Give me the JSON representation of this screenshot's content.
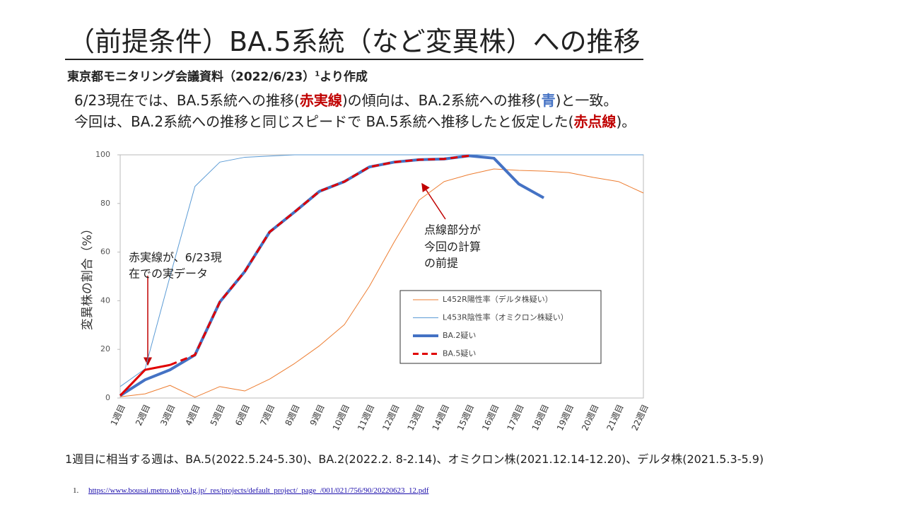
{
  "slide": {
    "title": "（前提条件）BA.5系統（など変異株）への推移",
    "subtitle": "東京都モニタリング会議資料（2022/6/23）",
    "subtitle_ref": "1",
    "subtitle_tail": "より作成",
    "line1": [
      "6/23現在では、BA.5系統への推移(",
      "赤実線",
      ")の傾向は、BA.2系統への推移(",
      "青",
      ")と一致。"
    ],
    "line2": [
      "今回は、BA.2系統への推移と同じスピードで BA.5系統へ推移したと仮定した(",
      "赤点線",
      ")。"
    ],
    "footer": "1週目に相当する週は、BA.5(2022.5.24-5.30)、BA.2(2022.2. 8-2.14)、オミクロン株(2021.12.14-12.20)、デルタ株(2021.5.3-5.9)",
    "footnote_num": "1.",
    "footnote_url": "https://www.bousai.metro.tokyo.lg.jp/_res/projects/default_project/_page_/001/021/756/90/20220623_12.pdf"
  },
  "chart_data": {
    "type": "line",
    "y_label": "変異株の割合（%）",
    "categories": [
      "1週目",
      "2週目",
      "3週目",
      "4週目",
      "5週目",
      "6週目",
      "7週目",
      "8週目",
      "9週目",
      "10週目",
      "11週目",
      "12週目",
      "13週目",
      "14週目",
      "15週目",
      "16週目",
      "17週目",
      "18週目",
      "19週目",
      "20週目",
      "21週目",
      "22週目"
    ],
    "ylim": [
      0,
      100
    ],
    "yticks": [
      0,
      20,
      40,
      60,
      80,
      100
    ],
    "grid": false,
    "series": [
      {
        "name": "L452R陽性率（デルタ株疑い）",
        "color": "#ed7d31",
        "width": 1,
        "values": [
          0.5,
          1.7,
          5.2,
          0.3,
          4.7,
          2.9,
          7.8,
          14.2,
          21.5,
          30.2,
          45.9,
          64.2,
          81.4,
          89,
          91.9,
          94.2,
          93.6,
          93.3,
          92.7,
          90.7,
          89,
          84.3
        ]
      },
      {
        "name": "L453R陰性率（オミクロン株疑い）",
        "color": "#5b9bd5",
        "width": 1,
        "values": [
          4.7,
          12,
          50,
          87,
          97,
          99,
          99.5,
          100,
          100,
          100,
          100,
          100,
          100,
          100,
          100,
          100,
          100,
          100,
          100,
          100,
          100,
          100
        ]
      },
      {
        "name": "BA.2疑い",
        "color": "#4472c4",
        "width": 4,
        "values": [
          1,
          7.5,
          11.6,
          17.7,
          39.5,
          52,
          68.3,
          76.5,
          85,
          89,
          95,
          97,
          98,
          98.3,
          99.6,
          98.6,
          88,
          82.3,
          null,
          null,
          null,
          null
        ]
      },
      {
        "color": "#e00000",
        "width": 3,
        "values": [
          1,
          11.6,
          13.6,
          null,
          null,
          null,
          null,
          null,
          null,
          null,
          null,
          null,
          null,
          null,
          null,
          null,
          null,
          null,
          null,
          null,
          null,
          null
        ]
      },
      {
        "name": "BA.5疑い",
        "color": "#e00000",
        "width": 3,
        "dashed": true,
        "values": [
          null,
          null,
          13.6,
          17.7,
          39.5,
          52,
          68.3,
          76.5,
          85,
          89,
          95,
          97,
          98,
          98.3,
          99.6,
          null,
          null,
          null,
          null,
          null,
          null,
          null
        ]
      }
    ],
    "annotations": [
      "赤実線が、6/23現",
      "在での実データ",
      "点線部分が",
      "今回の計算",
      "の前提"
    ]
  }
}
